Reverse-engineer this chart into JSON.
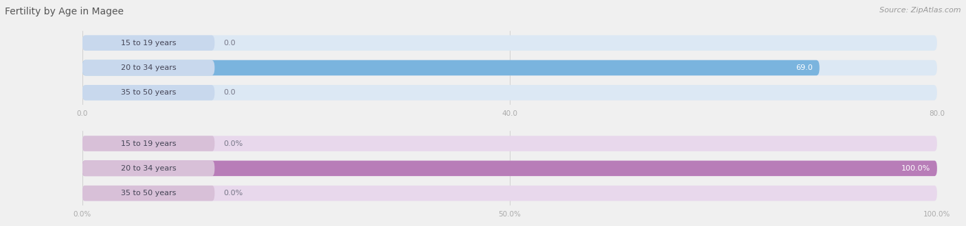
{
  "title": "Fertility by Age in Magee",
  "source": "Source: ZipAtlas.com",
  "top_chart": {
    "categories": [
      "15 to 19 years",
      "20 to 34 years",
      "35 to 50 years"
    ],
    "values": [
      0.0,
      69.0,
      0.0
    ],
    "bar_color": "#7ab4de",
    "bar_bg_color": "#dce8f4",
    "label_bg_color": "#c8d8ed",
    "xlim": [
      0,
      80.0
    ],
    "xticks": [
      0.0,
      40.0,
      80.0
    ],
    "xtick_labels": [
      "0.0",
      "40.0",
      "80.0"
    ]
  },
  "bottom_chart": {
    "categories": [
      "15 to 19 years",
      "20 to 34 years",
      "35 to 50 years"
    ],
    "values": [
      0.0,
      100.0,
      0.0
    ],
    "bar_color": "#b87db8",
    "bar_bg_color": "#e8d8ec",
    "label_bg_color": "#d8c0d8",
    "xlim": [
      0,
      100.0
    ],
    "xticks": [
      0.0,
      50.0,
      100.0
    ],
    "xtick_labels": [
      "0.0%",
      "50.0%",
      "100.0%"
    ]
  },
  "background_color": "#f0f0f0",
  "bar_height": 0.62,
  "title_fontsize": 10,
  "source_fontsize": 8,
  "label_fontsize": 8,
  "value_fontsize": 8
}
